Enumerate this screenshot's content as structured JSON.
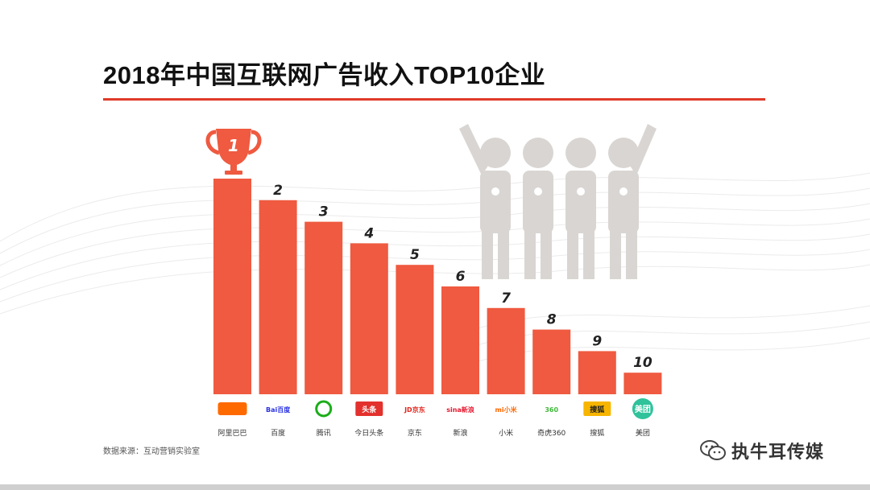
{
  "slide": {
    "title": "2018年中国互联网广告收入TOP10企业",
    "source": "数据来源：互动营销实验室",
    "watermark": "执牛耳传媒"
  },
  "colors": {
    "bar": "#ef5a40",
    "accent_rule": "#e03a2a",
    "trophy": "#ef5a40",
    "figures": "#d9d5d2"
  },
  "icons": {
    "trophy": "trophy-icon",
    "celebrating_people": "celebrating-people-icon",
    "wechat": "wechat-icon"
  },
  "chart_data": {
    "type": "bar",
    "rank_labels": [
      "1",
      "2",
      "3",
      "4",
      "5",
      "6",
      "7",
      "8",
      "9",
      "10"
    ],
    "categories": [
      "阿里巴巴",
      "百度",
      "腾讯",
      "今日头条",
      "京东",
      "新浪",
      "小米",
      "奇虎360",
      "搜狐",
      "美团"
    ],
    "logo_texts": [
      "",
      "Bai百度",
      "",
      "头条",
      "JD京东",
      "sina新浪",
      "mi小米",
      "360",
      "搜狐",
      "美团"
    ],
    "logo_colors": [
      "#ff6a00",
      "#2932e1",
      "#1aad19",
      "#e3312d",
      "#e1251b",
      "#e6162d",
      "#ff6700",
      "#40b93c",
      "#f7b500",
      "#2fc29b"
    ],
    "values": [
      10,
      9,
      8,
      7,
      6,
      5,
      4,
      3,
      2,
      1
    ],
    "ylim": [
      0,
      10
    ],
    "title": "",
    "xlabel": "",
    "ylabel": "",
    "grid": false,
    "legend": "none"
  }
}
